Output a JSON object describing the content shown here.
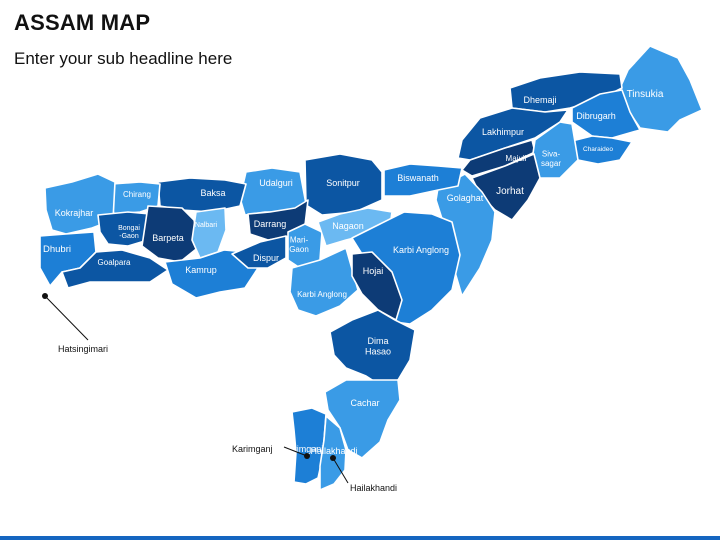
{
  "title": "ASSAM MAP",
  "subtitle": "Enter your sub headline here",
  "colors": {
    "navy": "#0d3b76",
    "dark": "#0c56a3",
    "mid": "#1d7fd6",
    "light": "#3a9be6",
    "pale": "#6bb9f2",
    "bar": "#1565c0"
  },
  "districts": [
    {
      "name": "Tinsukia",
      "shade": "light"
    },
    {
      "name": "Dhemaji",
      "shade": "dark"
    },
    {
      "name": "Dibrugarh",
      "shade": "mid"
    },
    {
      "name": "Lakhimpur",
      "shade": "dark"
    },
    {
      "name": "Majuli",
      "shade": "navy"
    },
    {
      "name": "Charaideo",
      "shade": "mid"
    },
    {
      "name": "Siva-sagar",
      "shade": "light"
    },
    {
      "name": "Jorhat",
      "shade": "navy"
    },
    {
      "name": "Golaghat",
      "shade": "light"
    },
    {
      "name": "Biswanath",
      "shade": "mid"
    },
    {
      "name": "Sonitpur",
      "shade": "dark"
    },
    {
      "name": "Udalguri",
      "shade": "light"
    },
    {
      "name": "Baksa",
      "shade": "dark"
    },
    {
      "name": "Chirang",
      "shade": "light"
    },
    {
      "name": "Kokrajhar",
      "shade": "light"
    },
    {
      "name": "Dhubri",
      "shade": "mid"
    },
    {
      "name": "Bongai -Gaon",
      "shade": "dark"
    },
    {
      "name": "Barpeta",
      "shade": "navy"
    },
    {
      "name": "Nalbari",
      "shade": "pale"
    },
    {
      "name": "Goalpara",
      "shade": "dark"
    },
    {
      "name": "Kamrup",
      "shade": "mid"
    },
    {
      "name": "Darrang",
      "shade": "navy"
    },
    {
      "name": "Dispur",
      "shade": "dark"
    },
    {
      "name": "Mari-Gaon",
      "shade": "light"
    },
    {
      "name": "Nagaon",
      "shade": "pale"
    },
    {
      "name": "Karbi Anglong",
      "shade": "mid"
    },
    {
      "name": "Karbi Anglong",
      "shade": "light"
    },
    {
      "name": "Hojai",
      "shade": "navy"
    },
    {
      "name": "Dima Hasao",
      "shade": "dark"
    },
    {
      "name": "Cachar",
      "shade": "light"
    },
    {
      "name": "Karimganj",
      "shade": "mid"
    },
    {
      "name": "Hailakhandi",
      "shade": "light"
    }
  ],
  "callouts": [
    {
      "name": "Hatsingimari"
    },
    {
      "name": "Karimganj"
    },
    {
      "name": "Hailakhandi"
    }
  ]
}
